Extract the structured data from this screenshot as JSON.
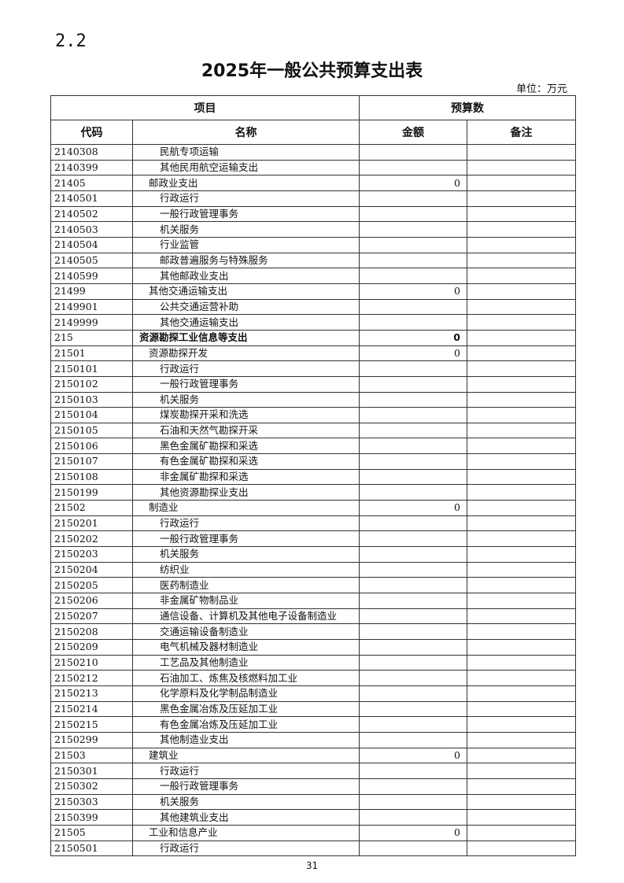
{
  "section_number": "2.2",
  "title": "2025年一般公共预算支出表",
  "unit": "单位：万元",
  "header": {
    "group_item": "项目",
    "group_budget": "预算数",
    "code": "代码",
    "name": "名称",
    "amount": "金额",
    "note": "备注"
  },
  "rows": [
    {
      "code": "2140308",
      "name": "民航专项运输",
      "level": 3,
      "amount": "",
      "note": ""
    },
    {
      "code": "2140399",
      "name": "其他民用航空运输支出",
      "level": 3,
      "amount": "",
      "note": ""
    },
    {
      "code": "21405",
      "name": "邮政业支出",
      "level": 2,
      "amount": "0",
      "note": ""
    },
    {
      "code": "2140501",
      "name": "行政运行",
      "level": 3,
      "amount": "",
      "note": ""
    },
    {
      "code": "2140502",
      "name": "一般行政管理事务",
      "level": 3,
      "amount": "",
      "note": ""
    },
    {
      "code": "2140503",
      "name": "机关服务",
      "level": 3,
      "amount": "",
      "note": ""
    },
    {
      "code": "2140504",
      "name": "行业监管",
      "level": 3,
      "amount": "",
      "note": ""
    },
    {
      "code": "2140505",
      "name": "邮政普遍服务与特殊服务",
      "level": 3,
      "amount": "",
      "note": ""
    },
    {
      "code": "2140599",
      "name": "其他邮政业支出",
      "level": 3,
      "amount": "",
      "note": ""
    },
    {
      "code": "21499",
      "name": "其他交通运输支出",
      "level": 2,
      "amount": "0",
      "note": ""
    },
    {
      "code": "2149901",
      "name": "公共交通运营补助",
      "level": 3,
      "amount": "",
      "note": ""
    },
    {
      "code": "2149999",
      "name": "其他交通运输支出",
      "level": 3,
      "amount": "",
      "note": ""
    },
    {
      "code": "215",
      "name": "资源勘探工业信息等支出",
      "level": 1,
      "amount": "0",
      "note": ""
    },
    {
      "code": "21501",
      "name": "资源勘探开发",
      "level": 2,
      "amount": "0",
      "note": ""
    },
    {
      "code": "2150101",
      "name": "行政运行",
      "level": 3,
      "amount": "",
      "note": ""
    },
    {
      "code": "2150102",
      "name": "一般行政管理事务",
      "level": 3,
      "amount": "",
      "note": ""
    },
    {
      "code": "2150103",
      "name": "机关服务",
      "level": 3,
      "amount": "",
      "note": ""
    },
    {
      "code": "2150104",
      "name": "煤炭勘探开采和洗选",
      "level": 3,
      "amount": "",
      "note": ""
    },
    {
      "code": "2150105",
      "name": "石油和天然气勘探开采",
      "level": 3,
      "amount": "",
      "note": ""
    },
    {
      "code": "2150106",
      "name": "黑色金属矿勘探和采选",
      "level": 3,
      "amount": "",
      "note": ""
    },
    {
      "code": "2150107",
      "name": "有色金属矿勘探和采选",
      "level": 3,
      "amount": "",
      "note": ""
    },
    {
      "code": "2150108",
      "name": "非金属矿勘探和采选",
      "level": 3,
      "amount": "",
      "note": ""
    },
    {
      "code": "2150199",
      "name": "其他资源勘探业支出",
      "level": 3,
      "amount": "",
      "note": ""
    },
    {
      "code": "21502",
      "name": "制造业",
      "level": 2,
      "amount": "0",
      "note": ""
    },
    {
      "code": "2150201",
      "name": "行政运行",
      "level": 3,
      "amount": "",
      "note": ""
    },
    {
      "code": "2150202",
      "name": "一般行政管理事务",
      "level": 3,
      "amount": "",
      "note": ""
    },
    {
      "code": "2150203",
      "name": "机关服务",
      "level": 3,
      "amount": "",
      "note": ""
    },
    {
      "code": "2150204",
      "name": "纺织业",
      "level": 3,
      "amount": "",
      "note": ""
    },
    {
      "code": "2150205",
      "name": "医药制造业",
      "level": 3,
      "amount": "",
      "note": ""
    },
    {
      "code": "2150206",
      "name": "非金属矿物制品业",
      "level": 3,
      "amount": "",
      "note": ""
    },
    {
      "code": "2150207",
      "name": "通信设备、计算机及其他电子设备制造业",
      "level": 3,
      "amount": "",
      "note": ""
    },
    {
      "code": "2150208",
      "name": "交通运输设备制造业",
      "level": 3,
      "amount": "",
      "note": ""
    },
    {
      "code": "2150209",
      "name": "电气机械及器材制造业",
      "level": 3,
      "amount": "",
      "note": ""
    },
    {
      "code": "2150210",
      "name": "工艺品及其他制造业",
      "level": 3,
      "amount": "",
      "note": ""
    },
    {
      "code": "2150212",
      "name": "石油加工、炼焦及核燃料加工业",
      "level": 3,
      "amount": "",
      "note": ""
    },
    {
      "code": "2150213",
      "name": "化学原料及化学制品制造业",
      "level": 3,
      "amount": "",
      "note": ""
    },
    {
      "code": "2150214",
      "name": "黑色金属冶炼及压延加工业",
      "level": 3,
      "amount": "",
      "note": ""
    },
    {
      "code": "2150215",
      "name": "有色金属冶炼及压延加工业",
      "level": 3,
      "amount": "",
      "note": ""
    },
    {
      "code": "2150299",
      "name": "其他制造业支出",
      "level": 3,
      "amount": "",
      "note": ""
    },
    {
      "code": "21503",
      "name": "建筑业",
      "level": 2,
      "amount": "0",
      "note": ""
    },
    {
      "code": "2150301",
      "name": "行政运行",
      "level": 3,
      "amount": "",
      "note": ""
    },
    {
      "code": "2150302",
      "name": "一般行政管理事务",
      "level": 3,
      "amount": "",
      "note": ""
    },
    {
      "code": "2150303",
      "name": "机关服务",
      "level": 3,
      "amount": "",
      "note": ""
    },
    {
      "code": "2150399",
      "name": "其他建筑业支出",
      "level": 3,
      "amount": "",
      "note": ""
    },
    {
      "code": "21505",
      "name": "工业和信息产业",
      "level": 2,
      "amount": "0",
      "note": ""
    },
    {
      "code": "2150501",
      "name": "行政运行",
      "level": 3,
      "amount": "",
      "note": ""
    }
  ],
  "page_number": "31"
}
